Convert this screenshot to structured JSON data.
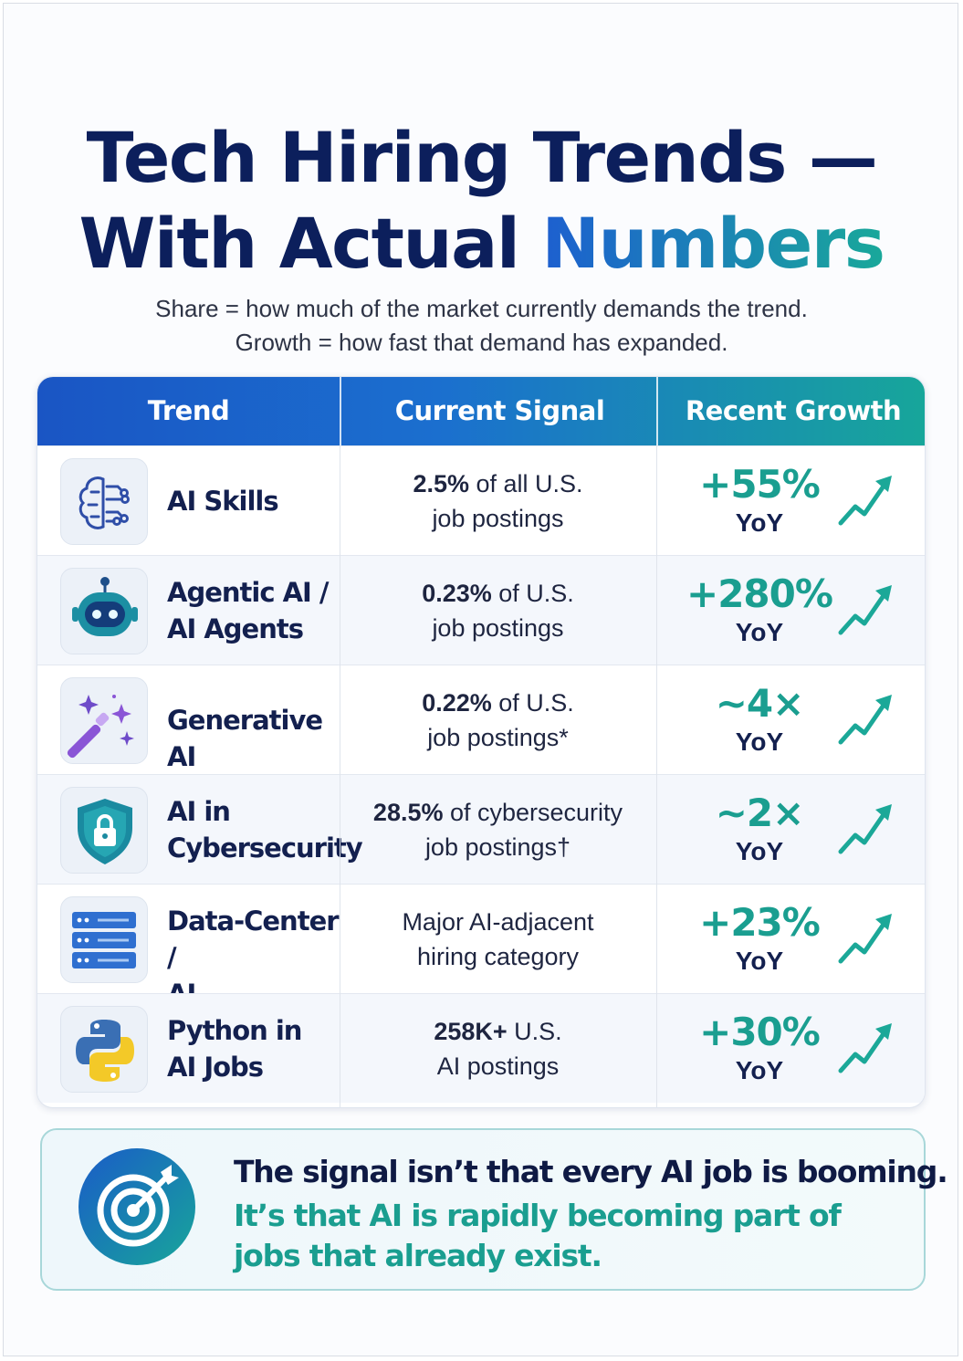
{
  "title": {
    "line1": "Tech Hiring Trends —",
    "line2_a": "With Actual ",
    "line2_b": "Numbers"
  },
  "subtitle": {
    "line1": "Share = how much of the market currently demands the trend.",
    "line2": "Growth = how fast that demand has expanded."
  },
  "table": {
    "headers": [
      "Trend",
      "Current Signal",
      "Recent Growth"
    ],
    "rows": [
      {
        "icon": "brain-circuit-icon",
        "trend": [
          "AI Skills"
        ],
        "signal_bold": "2.5%",
        "signal_rest": " of all U.S.",
        "signal_line2": "job postings",
        "growth": "+55%",
        "unit": "YoY"
      },
      {
        "icon": "robot-icon",
        "trend": [
          "Agentic AI /",
          "AI Agents"
        ],
        "signal_bold": "0.23%",
        "signal_rest": " of U.S.",
        "signal_line2": "job postings",
        "growth": "+280%",
        "unit": "YoY"
      },
      {
        "icon": "magic-wand-icon",
        "trend": [
          "Generative AI"
        ],
        "signal_bold": "0.22%",
        "signal_rest": " of U.S.",
        "signal_line2": "job postings*",
        "growth": "~4×",
        "unit": "YoY"
      },
      {
        "icon": "shield-lock-icon",
        "trend": [
          "AI in",
          "Cybersecurity"
        ],
        "signal_bold": "28.5%",
        "signal_rest": " of cybersecurity",
        "signal_line2": "job postings†",
        "growth": "~2×",
        "unit": "YoY"
      },
      {
        "icon": "server-rack-icon",
        "trend": [
          "Data-Center /",
          "AI Infrastructure"
        ],
        "signal_bold": "",
        "signal_rest": "Major AI-adjacent",
        "signal_line2": "hiring category",
        "growth": "+23%",
        "unit": "YoY"
      },
      {
        "icon": "python-logo-icon",
        "trend": [
          "Python in",
          "AI Jobs"
        ],
        "signal_bold": "258K+",
        "signal_rest": " U.S.",
        "signal_line2": "AI postings",
        "growth": "+30%",
        "unit": "YoY"
      }
    ]
  },
  "banner": {
    "icon": "target-icon",
    "line1": "The signal isn’t that every AI job is booming.",
    "line2": "It’s that AI is rapidly becoming part of jobs that already exist."
  },
  "colors": {
    "navy": "#0c1f5c",
    "teal": "#1a9e90",
    "blue": "#1a55c4"
  }
}
